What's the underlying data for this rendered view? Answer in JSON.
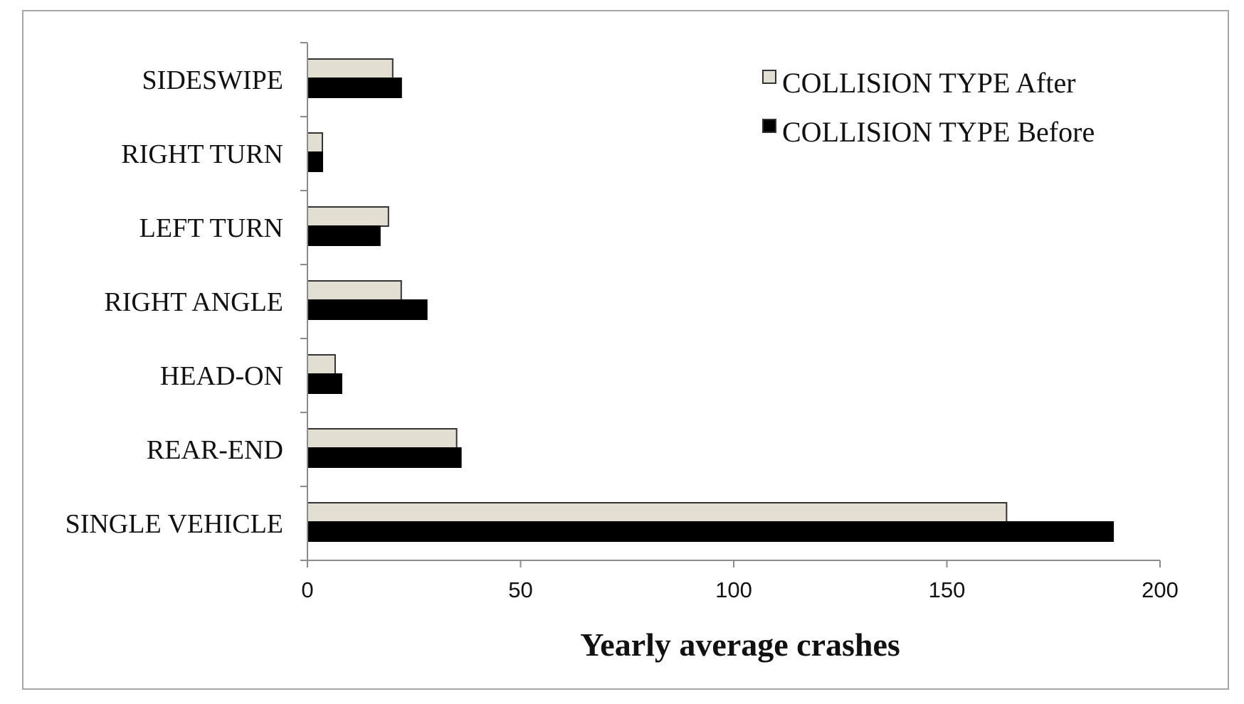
{
  "chart_data": {
    "type": "bar",
    "orientation": "horizontal",
    "categories": [
      "SINGLE VEHICLE",
      "REAR-END",
      "HEAD-ON",
      "RIGHT ANGLE",
      "LEFT TURN",
      "RIGHT TURN",
      "SIDESWIPE"
    ],
    "series": [
      {
        "name": "COLLISION TYPE After",
        "color": "#e2dfd2",
        "values": [
          164,
          35,
          6.5,
          22,
          19,
          3.5,
          20
        ]
      },
      {
        "name": "COLLISION TYPE Before",
        "color": "#000000",
        "values": [
          189,
          36,
          8,
          28,
          17,
          3.5,
          22
        ]
      }
    ],
    "xlabel": "Yearly average crashes",
    "ylabel": "",
    "xlim": [
      0,
      200
    ],
    "xticks": [
      "0",
      "50",
      "100",
      "150",
      "200"
    ],
    "grid": false,
    "legend": "top-right"
  }
}
